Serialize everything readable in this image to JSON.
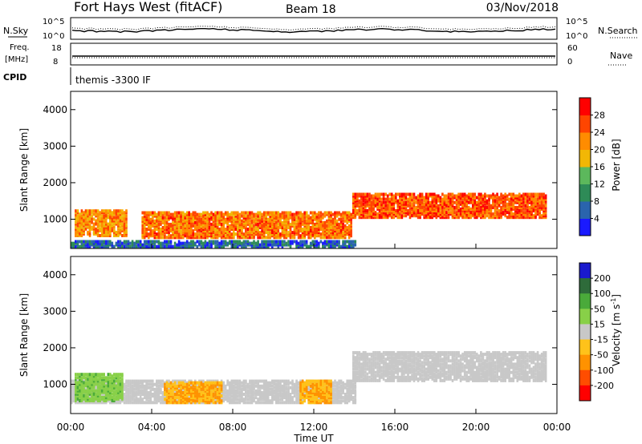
{
  "header": {
    "station": "Fort Hays West (fitACF)",
    "beam": "Beam 18",
    "date": "03/Nov/2018"
  },
  "strips": {
    "nsky_label": "N.Sky",
    "nsearch_label": "N.Search",
    "noise_ticks": [
      "10^5",
      "10^0"
    ],
    "freq_label_top": "Freq.",
    "freq_label_unit": "[MHz]",
    "freq_ticks": [
      "18",
      "8"
    ],
    "nave_ticks": [
      "60",
      "0"
    ],
    "nave_label": "Nave",
    "cpid_label": "CPID",
    "cpid_value": "themis -3300 IF"
  },
  "chart_data": [
    {
      "type": "heatmap",
      "name": "power",
      "ylabel": "Slant Range [km]",
      "xlabel": "Time UT",
      "x_ticks": [
        "00:00",
        "04:00",
        "08:00",
        "12:00",
        "16:00",
        "20:00",
        "00:00"
      ],
      "y_ticks": [
        1000,
        2000,
        3000,
        4000
      ],
      "ylim": [
        200,
        4500
      ],
      "colorbar": {
        "label": "Power [dB]",
        "ticks": [
          "4",
          "8",
          "12",
          "16",
          "20",
          "24",
          "28"
        ],
        "range": [
          0,
          30
        ],
        "colors": [
          "#1a1aff",
          "#2a64ad",
          "#2e8b57",
          "#5cb85c",
          "#f2b705",
          "#ff8c00",
          "#ff4500",
          "#ff0000"
        ]
      },
      "features": [
        {
          "desc": "E-region / ground band",
          "t_start": 0.0,
          "t_end": 14.0,
          "r_start": 250,
          "r_end": 400,
          "level": 6
        },
        {
          "desc": "early echoes",
          "t_start": 0.2,
          "t_end": 2.8,
          "r_start": 550,
          "r_end": 1250,
          "level": 20
        },
        {
          "desc": "main echo band",
          "t_start": 3.5,
          "t_end": 13.8,
          "r_start": 500,
          "r_end": 1200,
          "level": 22
        },
        {
          "desc": "post 14 UT band",
          "t_start": 13.9,
          "t_end": 23.5,
          "r_start": 1050,
          "r_end": 1700,
          "level": 24
        }
      ]
    },
    {
      "type": "heatmap",
      "name": "velocity",
      "ylabel": "Slant Range [km]",
      "xlabel": "Time UT",
      "x_ticks": [
        "00:00",
        "04:00",
        "08:00",
        "12:00",
        "16:00",
        "20:00",
        "00:00"
      ],
      "y_ticks": [
        1000,
        2000,
        3000,
        4000
      ],
      "ylim": [
        200,
        4500
      ],
      "colorbar": {
        "label": "Velocity [m s^-1]",
        "ticks": [
          "200",
          "100",
          "50",
          "15",
          "-15",
          "-50",
          "-100",
          "-200"
        ],
        "range": [
          -250,
          250
        ],
        "colors": [
          "#1a1acd",
          "#2e6b3a",
          "#4aaa3a",
          "#88d048",
          "#c8c8c8",
          "#ffc21a",
          "#ff9200",
          "#ff4d00",
          "#ff0000"
        ]
      },
      "features": [
        {
          "desc": "ground scatter band",
          "t_start": 0.0,
          "t_end": 14.0,
          "r_start": 500,
          "r_end": 1100,
          "v": 0
        },
        {
          "desc": "green early echoes",
          "t_start": 0.2,
          "t_end": 2.6,
          "r_start": 550,
          "r_end": 1300,
          "v": 40
        },
        {
          "desc": "orange patch",
          "t_start": 4.6,
          "t_end": 7.4,
          "r_start": 500,
          "r_end": 1050,
          "v": -50
        },
        {
          "desc": "orange patch",
          "t_start": 11.3,
          "t_end": 12.8,
          "r_start": 500,
          "r_end": 1100,
          "v": -50
        },
        {
          "desc": "gray post 14 UT band",
          "t_start": 13.9,
          "t_end": 23.5,
          "r_start": 1100,
          "r_end": 1900,
          "v": 0
        }
      ]
    }
  ]
}
